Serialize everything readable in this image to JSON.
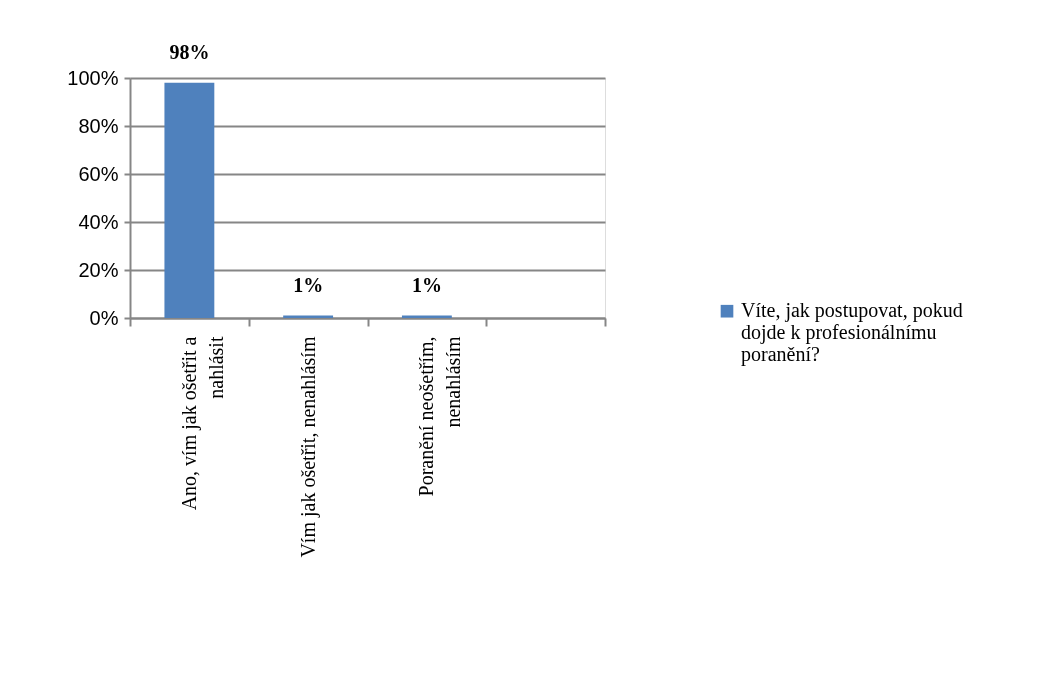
{
  "chart_data": {
    "type": "bar",
    "categories": [
      "Ano, vím jak ošetřit a nahlásit",
      "Vím jak ošetřit, nenahlásím",
      "Poranění neošetřím, nenahlásím",
      null
    ],
    "series": [
      {
        "name": "Víte, jak postupovat, pokud dojde k profesionálnímu poranění?",
        "color": "#4f81bd",
        "values": [
          98,
          1,
          1,
          null
        ],
        "value_labels": [
          "98%",
          "1%",
          "1%",
          null
        ]
      }
    ],
    "ylim": [
      0,
      100
    ],
    "yticks": [
      {
        "value": 0,
        "label": "0%"
      },
      {
        "value": 20,
        "label": "20%"
      },
      {
        "value": 40,
        "label": "40%"
      },
      {
        "value": 60,
        "label": "60%"
      },
      {
        "value": 80,
        "label": "80%"
      },
      {
        "value": 100,
        "label": "100%"
      }
    ],
    "grid": "y",
    "legend": "right"
  }
}
